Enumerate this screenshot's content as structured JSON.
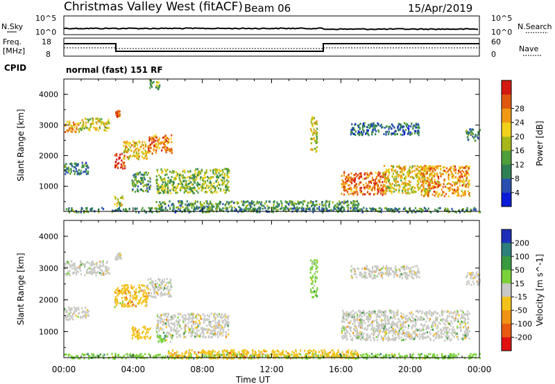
{
  "header": {
    "station": "Christmas Valley West (fitACF)",
    "beam": "Beam 06",
    "date": "15/Apr/2019"
  },
  "noise_panel": {
    "left_label": "N.Sky",
    "right_label": "N.Search",
    "ticks_left": [
      "10^5",
      "10^0"
    ],
    "ticks_right": [
      "10^5",
      "10^0"
    ]
  },
  "freq_panel": {
    "left_label_1": "Freq.",
    "left_label_2": "[MHz]",
    "right_label": "Nave",
    "left_ticks": [
      "18",
      "8"
    ],
    "right_ticks": [
      "60",
      "0"
    ],
    "cpid_label": "CPID",
    "cpid_text": "normal (fast) 151 RF"
  },
  "x_axis": {
    "label": "Time UT",
    "ticks": [
      "00:00",
      "04:00",
      "08:00",
      "12:00",
      "16:00",
      "20:00",
      "00:00"
    ]
  },
  "chart_data": [
    {
      "type": "heatmap",
      "title": "",
      "xlabel": "Time UT",
      "ylabel": "Slant Range [km]",
      "xlim": [
        0,
        24
      ],
      "ylim": [
        180,
        4500
      ],
      "yticks": [
        "1000",
        "2000",
        "3000",
        "4000"
      ],
      "colorbar": {
        "label": "Power [dB]",
        "ticks": [
          "4",
          "8",
          "12",
          "16",
          "20",
          "24",
          "28"
        ],
        "colors": [
          "#0b1bd8",
          "#2a4fb0",
          "#2f7f55",
          "#4e9e3a",
          "#a6b818",
          "#f2d11a",
          "#f09a14",
          "#e0580f",
          "#d41a10"
        ]
      },
      "regions": [
        {
          "t0": 0.0,
          "t1": 0.9,
          "r0": 2800,
          "r1": 3150,
          "level": 0.72
        },
        {
          "t0": 0.9,
          "t1": 2.6,
          "r0": 2850,
          "r1": 3250,
          "level": 0.55
        },
        {
          "t0": 2.9,
          "t1": 3.2,
          "r0": 3300,
          "r1": 3500,
          "level": 0.8
        },
        {
          "t0": 0.0,
          "t1": 1.4,
          "r0": 1400,
          "r1": 1800,
          "level": 0.3
        },
        {
          "t0": 2.9,
          "t1": 3.5,
          "r0": 1600,
          "r1": 2100,
          "level": 0.9
        },
        {
          "t0": 3.4,
          "t1": 4.8,
          "r0": 1900,
          "r1": 2500,
          "level": 0.62
        },
        {
          "t0": 4.8,
          "t1": 6.2,
          "r0": 2100,
          "r1": 2700,
          "level": 0.78
        },
        {
          "t0": 3.9,
          "t1": 5.0,
          "r0": 850,
          "r1": 1500,
          "level": 0.35
        },
        {
          "t0": 5.3,
          "t1": 9.5,
          "r0": 800,
          "r1": 1600,
          "level": 0.45
        },
        {
          "t0": 4.9,
          "t1": 5.5,
          "r0": 4200,
          "r1": 4500,
          "level": 0.4
        },
        {
          "t0": 14.2,
          "t1": 14.6,
          "r0": 2100,
          "r1": 3300,
          "level": 0.55
        },
        {
          "t0": 16.0,
          "t1": 18.6,
          "r0": 750,
          "r1": 1500,
          "level": 0.82
        },
        {
          "t0": 18.4,
          "t1": 21.2,
          "r0": 800,
          "r1": 1700,
          "level": 0.6
        },
        {
          "t0": 20.6,
          "t1": 23.4,
          "r0": 700,
          "r1": 1700,
          "level": 0.72
        },
        {
          "t0": 16.5,
          "t1": 20.5,
          "r0": 2700,
          "r1": 3100,
          "level": 0.25
        },
        {
          "t0": 23.2,
          "t1": 24.0,
          "r0": 2500,
          "r1": 2900,
          "level": 0.3
        },
        {
          "t0": 0.0,
          "t1": 24.0,
          "r0": 180,
          "r1": 330,
          "level": 0.3
        },
        {
          "t0": 5.3,
          "t1": 17.0,
          "r0": 300,
          "r1": 550,
          "level": 0.35
        },
        {
          "t0": 2.9,
          "t1": 3.4,
          "r0": 350,
          "r1": 700,
          "level": 0.55
        }
      ]
    },
    {
      "type": "heatmap",
      "title": "",
      "xlabel": "Time UT",
      "ylabel": "Slant Range [km]",
      "xlim": [
        0,
        24
      ],
      "ylim": [
        180,
        4500
      ],
      "yticks": [
        "1000",
        "2000",
        "3000",
        "4000"
      ],
      "colorbar": {
        "label": "Velocity [m s^-1]",
        "ticks": [
          "200",
          "100",
          "50",
          "15",
          "-15",
          "-50",
          "-100",
          "-200"
        ],
        "colors": [
          "#1c2fb8",
          "#2c7f7a",
          "#3a9a3f",
          "#7bd13a",
          "#c8c8c4",
          "#f3c21a",
          "#f09214",
          "#e85a10",
          "#e01010"
        ]
      },
      "regions": [
        {
          "t0": 0.0,
          "t1": 2.6,
          "r0": 2800,
          "r1": 3250,
          "level": 0.5
        },
        {
          "t0": 2.9,
          "t1": 3.3,
          "r0": 3300,
          "r1": 3500,
          "level": 0.5
        },
        {
          "t0": 0.0,
          "t1": 1.4,
          "r0": 1400,
          "r1": 1800,
          "level": 0.5
        },
        {
          "t0": 2.9,
          "t1": 4.8,
          "r0": 1800,
          "r1": 2500,
          "level": 0.62
        },
        {
          "t0": 4.8,
          "t1": 6.2,
          "r0": 2100,
          "r1": 2700,
          "level": 0.5
        },
        {
          "t0": 3.9,
          "t1": 5.0,
          "r0": 800,
          "r1": 1200,
          "level": 0.66
        },
        {
          "t0": 5.3,
          "t1": 9.5,
          "r0": 850,
          "r1": 1600,
          "level": 0.5
        },
        {
          "t0": 5.3,
          "t1": 6.2,
          "r0": 700,
          "r1": 900,
          "level": 0.38
        },
        {
          "t0": 14.2,
          "t1": 14.6,
          "r0": 2100,
          "r1": 3300,
          "level": 0.4
        },
        {
          "t0": 16.0,
          "t1": 23.4,
          "r0": 750,
          "r1": 1700,
          "level": 0.5
        },
        {
          "t0": 16.5,
          "t1": 20.5,
          "r0": 2700,
          "r1": 3100,
          "level": 0.5
        },
        {
          "t0": 23.2,
          "t1": 24.0,
          "r0": 2500,
          "r1": 2900,
          "level": 0.5
        },
        {
          "t0": 0.0,
          "t1": 24.0,
          "r0": 180,
          "r1": 330,
          "level": 0.38
        },
        {
          "t0": 6.0,
          "t1": 17.0,
          "r0": 180,
          "r1": 450,
          "level": 0.62
        }
      ]
    }
  ]
}
